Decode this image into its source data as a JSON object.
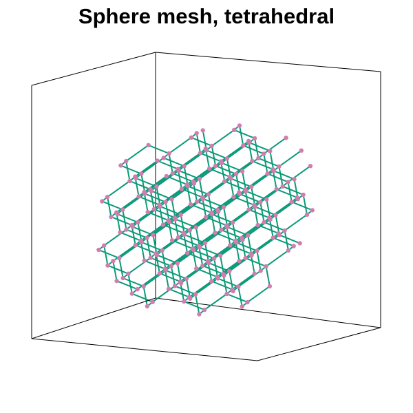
{
  "title": "Sphere mesh, tetrahedral",
  "colors": {
    "edge": "#0a9a78",
    "node": "#d27db1",
    "box": "#000000",
    "background": "#ffffff"
  },
  "mesh": {
    "type": "tetrahedral",
    "lattice": "diamond-like",
    "shape": "sphere"
  }
}
